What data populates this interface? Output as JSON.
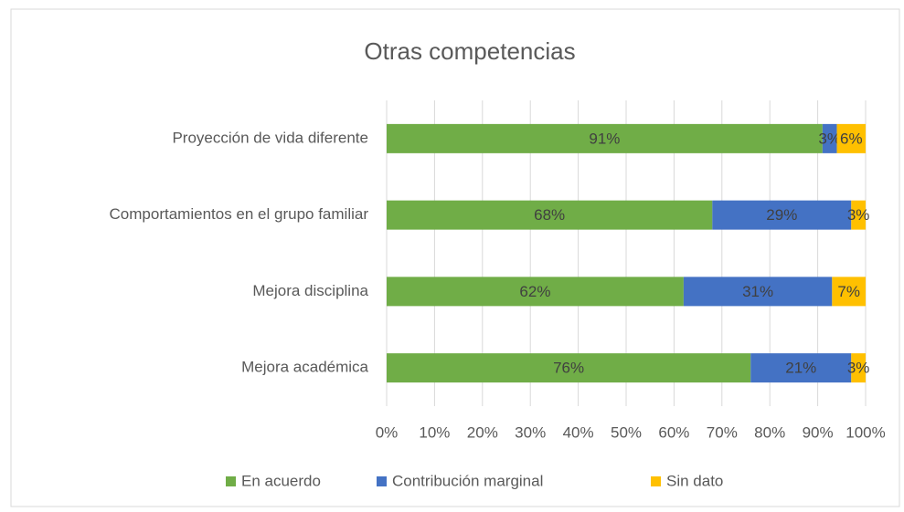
{
  "chart_data": {
    "type": "stacked-barh",
    "title": "Otras competencias",
    "categories": [
      "Proyección de vida diferente",
      "Comportamientos en el grupo familiar",
      "Mejora disciplina",
      "Mejora académica"
    ],
    "series": [
      {
        "name": "En acuerdo",
        "color": "#70ad47",
        "values": [
          91,
          68,
          62,
          76
        ],
        "value_labels": [
          "91%",
          "68%",
          "62%",
          "76%"
        ]
      },
      {
        "name": "Contribución marginal",
        "color": "#4472c4",
        "values": [
          3,
          29,
          31,
          21
        ],
        "value_labels": [
          "3%",
          "29%",
          "31%",
          "21%"
        ]
      },
      {
        "name": "Sin dato",
        "color": "#ffc000",
        "values": [
          6,
          3,
          7,
          3
        ],
        "value_labels": [
          "6%",
          "3%",
          "7%",
          "3%"
        ]
      }
    ],
    "xlim": [
      0,
      100
    ],
    "xticks": [
      {
        "value": 0,
        "label": "0%"
      },
      {
        "value": 10,
        "label": "10%"
      },
      {
        "value": 20,
        "label": "20%"
      },
      {
        "value": 30,
        "label": "30%"
      },
      {
        "value": 40,
        "label": "40%"
      },
      {
        "value": 50,
        "label": "50%"
      },
      {
        "value": 60,
        "label": "60%"
      },
      {
        "value": 70,
        "label": "70%"
      },
      {
        "value": 80,
        "label": "80%"
      },
      {
        "value": 90,
        "label": "90%"
      },
      {
        "value": 100,
        "label": "100%"
      }
    ],
    "grid": true,
    "legend": "bottom"
  }
}
